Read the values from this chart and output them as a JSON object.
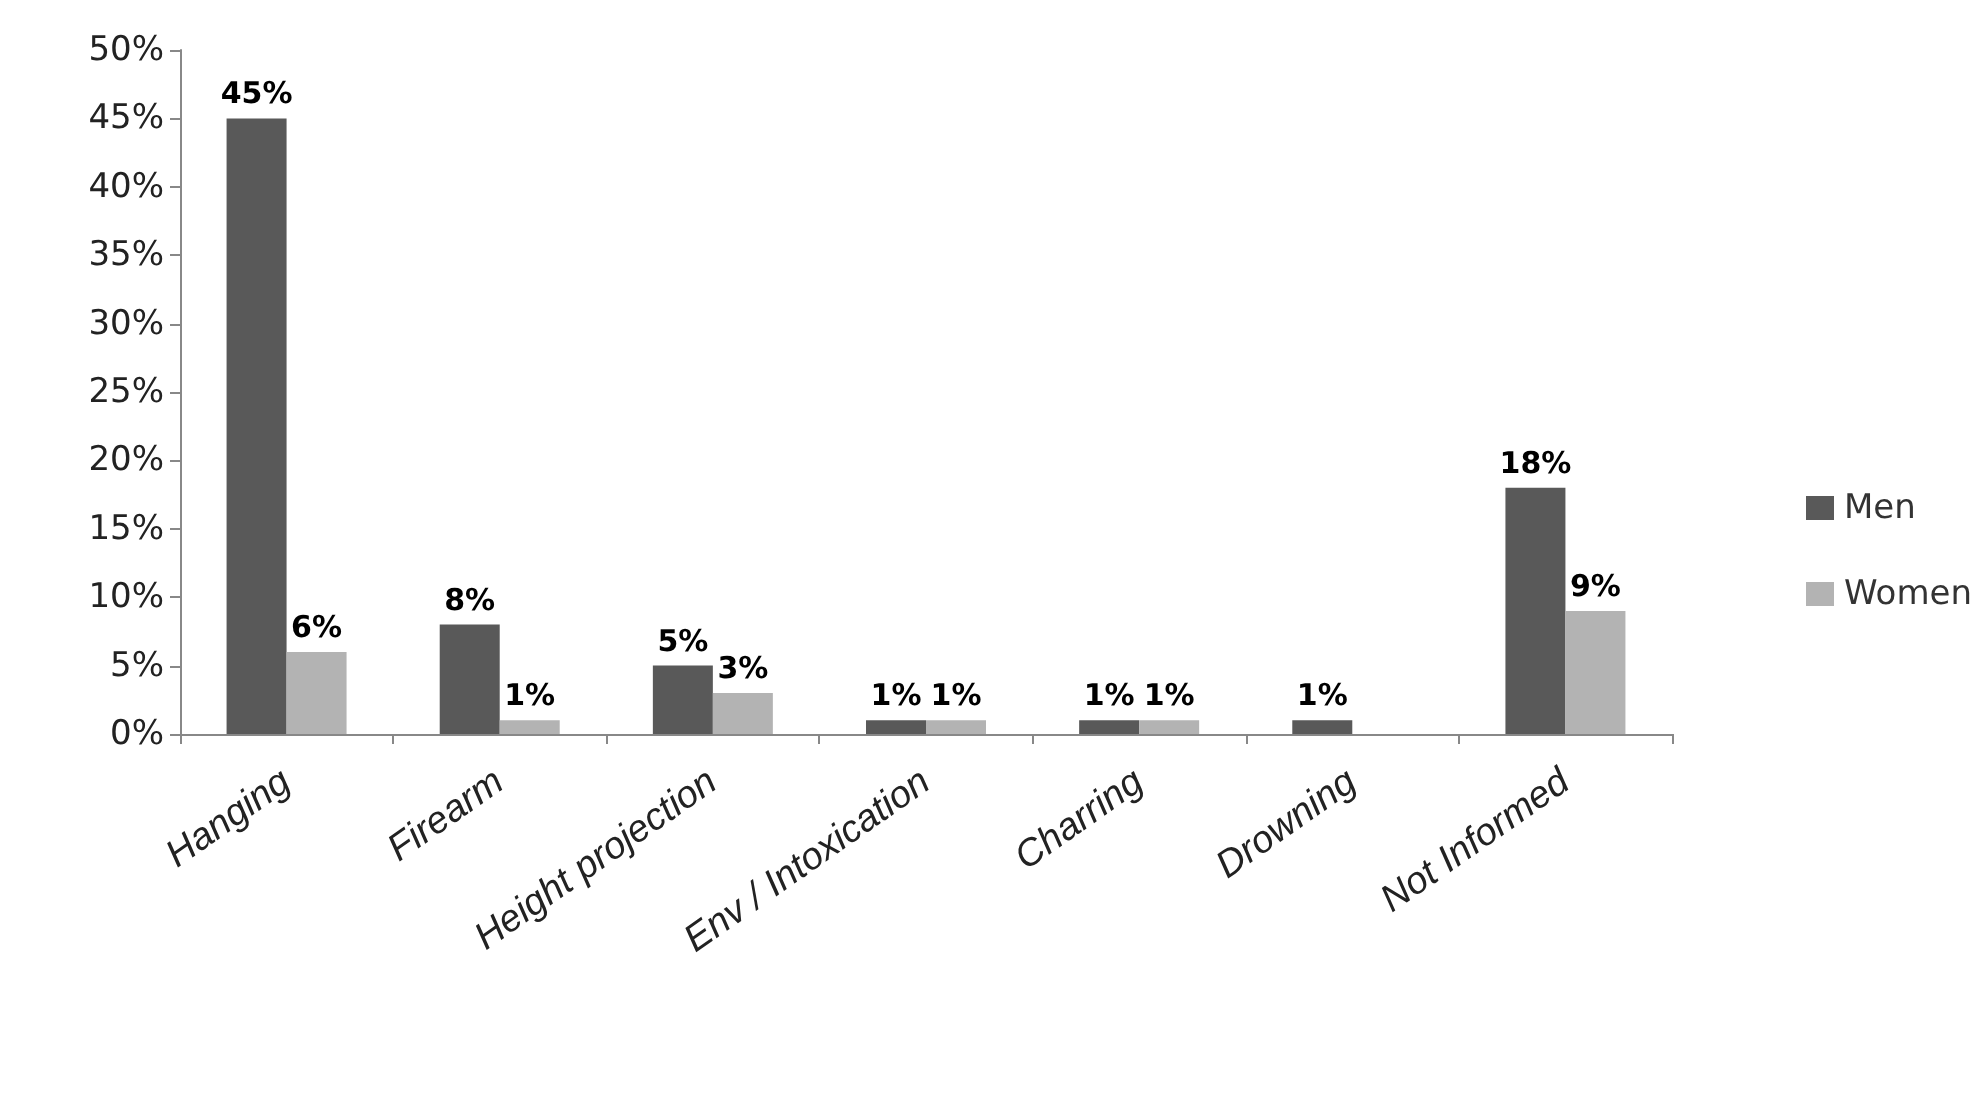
{
  "chart_data": {
    "type": "bar",
    "categories": [
      "Hanging",
      "Firearm",
      "Height projection",
      "Env / Intoxication",
      "Charring",
      "Drowning",
      "Not Informed"
    ],
    "series": [
      {
        "name": "Men",
        "color": "#595959",
        "values": [
          45,
          8,
          5,
          1,
          1,
          1,
          18
        ],
        "value_labels": [
          "45%",
          "8%",
          "5%",
          "1%",
          "1%",
          "1%",
          "18%"
        ]
      },
      {
        "name": "Women",
        "color": "#b3b3b3",
        "values": [
          6,
          1,
          3,
          1,
          1,
          null,
          9
        ],
        "value_labels": [
          "6%",
          "1%",
          "3%",
          "1%",
          "1%",
          null,
          "9%"
        ]
      }
    ],
    "ylim": [
      0,
      50
    ],
    "yticks": [
      {
        "value": 0,
        "label": "0%"
      },
      {
        "value": 5,
        "label": "5%"
      },
      {
        "value": 10,
        "label": "10%"
      },
      {
        "value": 15,
        "label": "15%"
      },
      {
        "value": 20,
        "label": "20%"
      },
      {
        "value": 25,
        "label": "25%"
      },
      {
        "value": 30,
        "label": "30%"
      },
      {
        "value": 35,
        "label": "35%"
      },
      {
        "value": 40,
        "label": "40%"
      },
      {
        "value": 45,
        "label": "45%"
      },
      {
        "value": 50,
        "label": "50%"
      }
    ],
    "grid": false,
    "legend": "right"
  }
}
